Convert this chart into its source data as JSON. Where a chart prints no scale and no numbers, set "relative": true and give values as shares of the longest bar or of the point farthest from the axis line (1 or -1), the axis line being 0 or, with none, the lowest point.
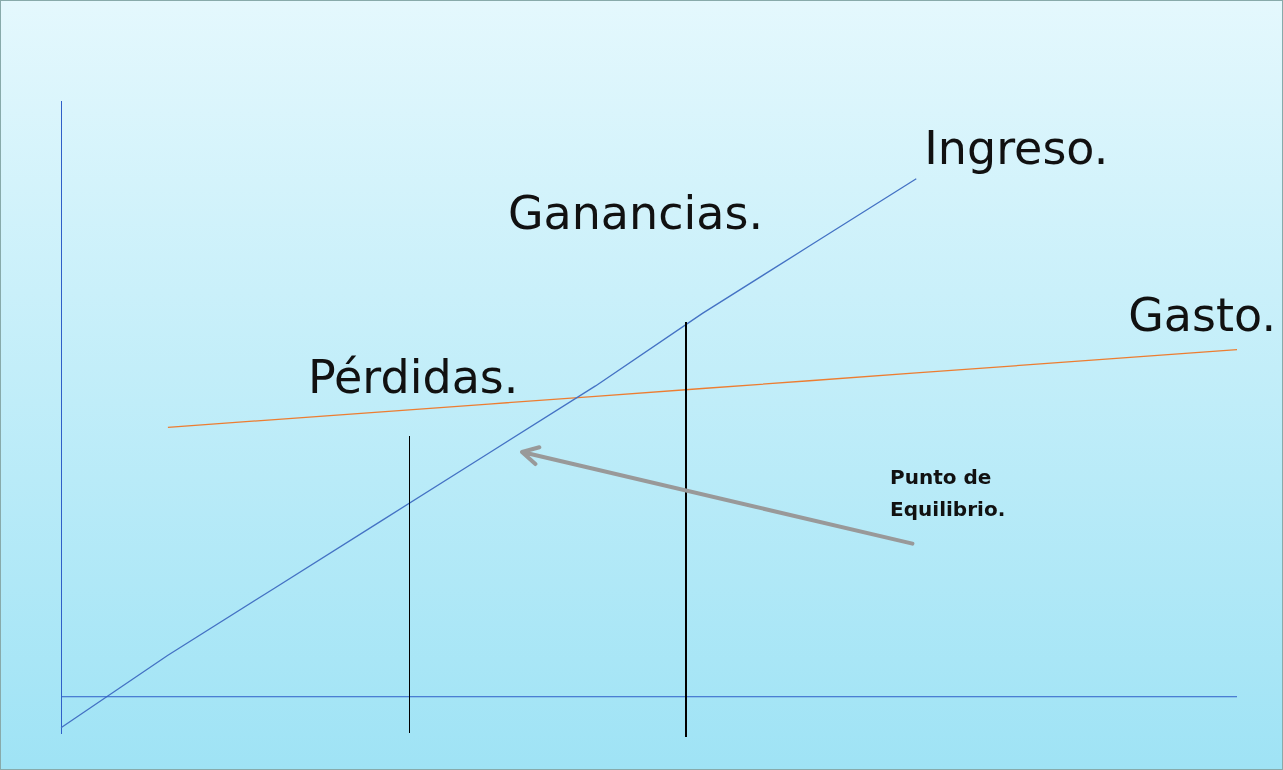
{
  "chart_data": {
    "type": "line",
    "relative": true,
    "legend": false,
    "grid": false,
    "ref_lines": [
      {
        "axis": "y",
        "value": 0,
        "color": "#2f5fc8"
      }
    ],
    "marker": "none",
    "categories": [
      null,
      null,
      null,
      null,
      null,
      null,
      null,
      null,
      null,
      null,
      null,
      null
    ],
    "series": [
      {
        "name": "Ingreso.",
        "color": "#4472c4",
        "values": [
          -0.06,
          0.08,
          0.21,
          0.34,
          0.47,
          0.6,
          0.74,
          0.87,
          1.0,
          null,
          null,
          null
        ]
      },
      {
        "name": "Gasto.",
        "color": "#ed7d31",
        "values": [
          null,
          0.52,
          0.535,
          0.55,
          0.565,
          0.58,
          0.595,
          0.61,
          0.625,
          0.64,
          0.655,
          0.67
        ]
      }
    ],
    "annotations": [
      "Pérdidas.",
      "Ganancias.",
      "Punto de Equilibrio."
    ]
  }
}
